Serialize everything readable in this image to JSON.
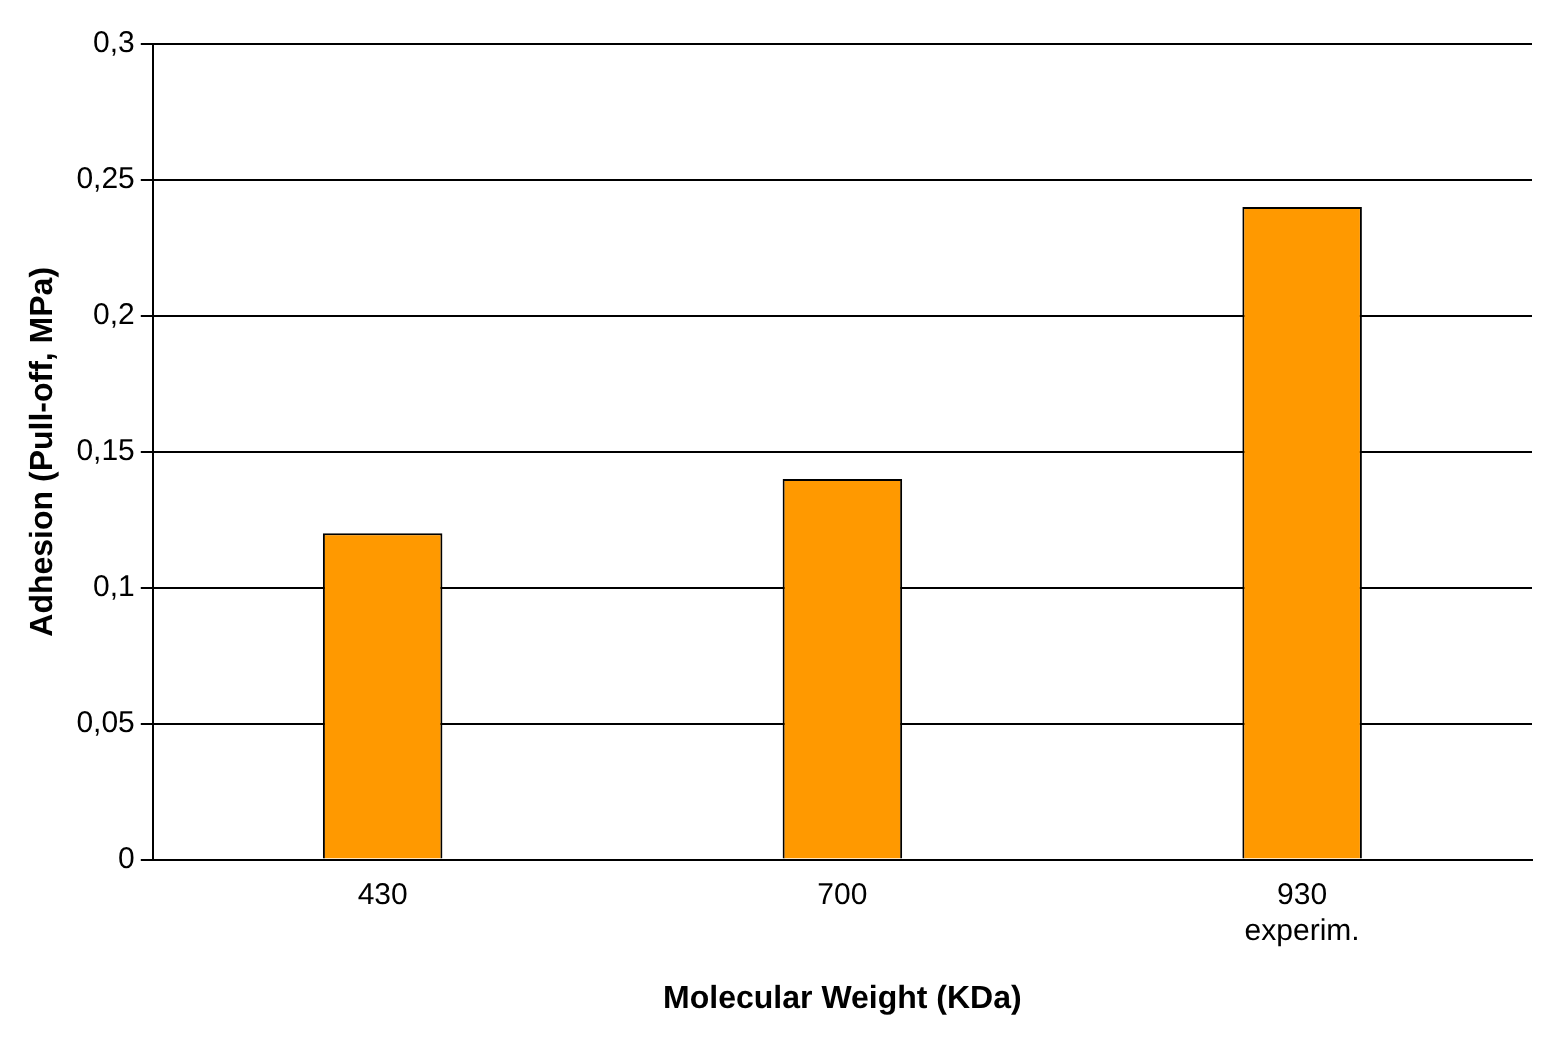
{
  "chart_data": {
    "type": "bar",
    "xlabel": "Molecular Weight (KDa)",
    "ylabel": "Adhesion (Pull-off, MPa)",
    "categories": [
      "430",
      "700",
      "930\nexperim."
    ],
    "values": [
      0.12,
      0.14,
      0.24
    ],
    "color": "#ff9900",
    "ylim": [
      0,
      0.3
    ],
    "yticks": [
      0,
      {
        "value": 0.05,
        "label": "0,05"
      },
      {
        "value": 0.1,
        "label": "0,1"
      },
      {
        "value": 0.15,
        "label": "0,15"
      },
      {
        "value": 0.2,
        "label": "0,2"
      },
      {
        "value": 0.25,
        "label": "0,25"
      },
      {
        "value": 0.3,
        "label": "0,3"
      }
    ],
    "grid": "y",
    "legend": false
  }
}
